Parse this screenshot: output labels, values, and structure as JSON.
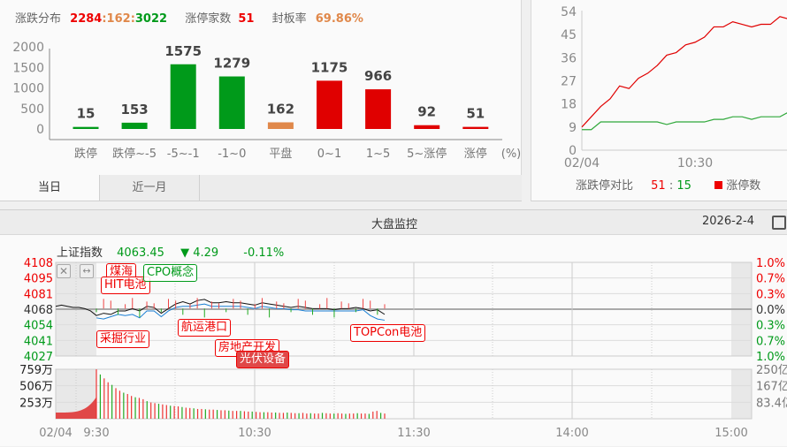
{
  "distribution": {
    "title": "涨跌分布",
    "up": "2284",
    "flat": "162",
    "down": "3022",
    "sep": ":",
    "limit_up_label": "涨停家数",
    "limit_up": "51",
    "seal_rate_label": "封板率",
    "seal_rate": "69.86%",
    "tabs": [
      {
        "label": "当日",
        "active": true
      },
      {
        "label": "近一月",
        "active": false
      }
    ]
  },
  "chart_data": [
    {
      "type": "bar",
      "categories": [
        "跌停",
        "跌停~-5",
        "-5~-1",
        "-1~0",
        "平盘",
        "0~1",
        "1~5",
        "5~涨停",
        "涨停"
      ],
      "values": [
        15,
        153,
        1575,
        1279,
        162,
        1175,
        966,
        92,
        51
      ],
      "colors": [
        "#009a1a",
        "#009a1a",
        "#009a1a",
        "#009a1a",
        "#e0884a",
        "#e00000",
        "#e00000",
        "#e00000",
        "#e00000"
      ],
      "unit_label": "(%)",
      "yticks": [
        0,
        500,
        1000,
        1500,
        2000
      ],
      "ylim": [
        0,
        2000
      ]
    },
    {
      "type": "line",
      "x": [
        "09:30",
        "09:35",
        "09:40",
        "09:45",
        "09:50",
        "09:55",
        "10:00",
        "10:05",
        "10:10",
        "10:15",
        "10:20",
        "10:25",
        "10:30",
        "10:35",
        "10:40",
        "10:45",
        "10:50",
        "10:55",
        "11:00",
        "11:05",
        "11:10",
        "11:15",
        "11:20"
      ],
      "series": [
        {
          "name": "涨停数",
          "color": "#e00000",
          "values": [
            9,
            13,
            17,
            20,
            25,
            24,
            28,
            30,
            33,
            37,
            38,
            41,
            42,
            44,
            48,
            48,
            50,
            49,
            48,
            49,
            49,
            52,
            51
          ]
        },
        {
          "color": "#2fa83a",
          "values": [
            8,
            8,
            11,
            11,
            11,
            11,
            11,
            11,
            11,
            10,
            11,
            11,
            11,
            11,
            12,
            12,
            13,
            13,
            12,
            13,
            13,
            13,
            15
          ]
        }
      ],
      "yticks": [
        0,
        9,
        18,
        27,
        36,
        45,
        54
      ],
      "ylim": [
        0,
        54
      ],
      "xticks": [
        "02/04",
        "10:30"
      ],
      "legend_label": "涨跌停对比",
      "ratio_up": "51",
      "ratio_down": "15",
      "legend_item": "涨停数"
    },
    {
      "type": "line",
      "title": "上证指数",
      "price": "4063.45",
      "change": "4.29",
      "change_pct": "-0.11%",
      "prev_close": 4068,
      "y_left": [
        "4108",
        "4095",
        "4081",
        "4068",
        "4054",
        "4041",
        "4027"
      ],
      "y_right": [
        "1.0%",
        "0.7%",
        "0.3%",
        "0.0%",
        "0.3%",
        "0.7%",
        "1.0%"
      ],
      "xticks": [
        "02/04",
        "9:30",
        "10:30",
        "11:30",
        "14:00",
        "15:00"
      ],
      "pre_market": [
        4070,
        4071,
        4070,
        4069,
        4069,
        4068,
        4066,
        4062
      ],
      "index": [
        4062,
        4064,
        4063,
        4066,
        4066,
        4068,
        4066,
        4070,
        4069,
        4064,
        4068,
        4072,
        4074,
        4072,
        4075,
        4076,
        4073,
        4073,
        4074,
        4073,
        4073,
        4072,
        4071,
        4073,
        4072,
        4071,
        4070,
        4069,
        4070,
        4069,
        4068,
        4068,
        4068,
        4067,
        4068,
        4068,
        4069,
        4068,
        4066,
        4067,
        4063
      ],
      "average": [
        4060,
        4059,
        4061,
        4063,
        4062,
        4063,
        4060,
        4066,
        4066,
        4061,
        4066,
        4069,
        4070,
        4070,
        4071,
        4072,
        4070,
        4070,
        4070,
        4070,
        4070,
        4069,
        4068,
        4070,
        4069,
        4068,
        4068,
        4067,
        4067,
        4066,
        4066,
        4066,
        4066,
        4066,
        4066,
        4066,
        4066,
        4067,
        4062,
        4059,
        4058
      ],
      "vol_ticks": [
        "759万",
        "506万",
        "253万"
      ],
      "amount_ticks": [
        "250亿",
        "167亿",
        "83.4亿"
      ],
      "volume": [
        759,
        680,
        620,
        560,
        520,
        470,
        430,
        400,
        380,
        350,
        330,
        320,
        300,
        270,
        250,
        240,
        230,
        220,
        210,
        200,
        195,
        190,
        180,
        170,
        165,
        160,
        150,
        150,
        145,
        140,
        140,
        135,
        130,
        130,
        125,
        120,
        120,
        120,
        115,
        110,
        110,
        105,
        100,
        100,
        100,
        95,
        95,
        90,
        90,
        95,
        90,
        85,
        85,
        90,
        80,
        85,
        80,
        80,
        90,
        85,
        80,
        80,
        85,
        80,
        75,
        80,
        80,
        85,
        80,
        80,
        75,
        110,
        120,
        90,
        80
      ],
      "events": [
        {
          "label": "煤海"
        },
        {
          "label": "HIT电池"
        },
        {
          "label": "CPO概念"
        },
        {
          "label": "采掘行业"
        },
        {
          "label": "航运港口"
        },
        {
          "label": "房地产开发"
        },
        {
          "label": "光伏设备"
        },
        {
          "label": "TOPCon电池"
        }
      ]
    }
  ],
  "monitor": {
    "title": "大盘监控",
    "date": "2026-2-4"
  }
}
